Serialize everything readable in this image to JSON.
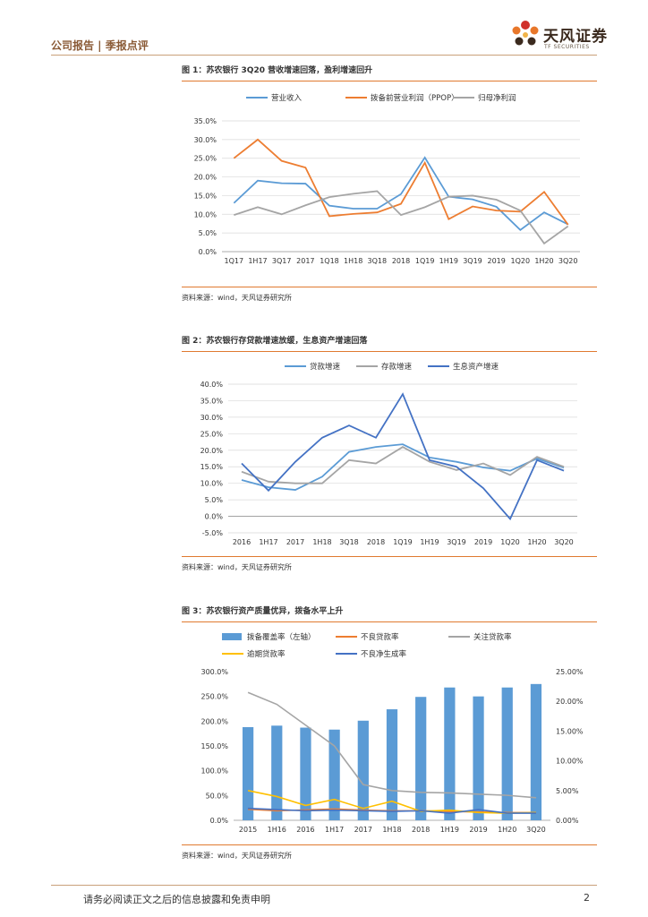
{
  "header": {
    "left": "公司报告 | 季报点评"
  },
  "logo": {
    "name": "天风证券",
    "sub": "TF SECURITIES"
  },
  "footer": {
    "disclaimer": "请务必阅读正文之后的信息披露和免责申明",
    "page": "2"
  },
  "colors": {
    "accent": "#e07a30",
    "blue": "#5b9bd5",
    "orange": "#ed7d31",
    "gray": "#a5a5a5",
    "yellow": "#ffc000",
    "navy": "#4472c4"
  },
  "figure1": {
    "title": "图 1：苏农银行 3Q20 营收增速回落，盈利增速回升",
    "source": "资料来源：wind，天风证券研究所",
    "chart_data": {
      "type": "line",
      "categories": [
        "1Q17",
        "1H17",
        "3Q17",
        "2017",
        "1Q18",
        "1H18",
        "3Q18",
        "2018",
        "1Q19",
        "1H19",
        "3Q19",
        "2019",
        "1Q20",
        "1H20",
        "3Q20"
      ],
      "series": [
        {
          "name": "营业收入",
          "color": "#5b9bd5",
          "values": [
            13.0,
            19.0,
            18.3,
            18.2,
            12.3,
            11.5,
            11.5,
            15.4,
            25.2,
            14.7,
            14.0,
            12.0,
            5.8,
            10.5,
            7.3
          ]
        },
        {
          "name": "拨备前营业利润（PPOP）",
          "color": "#ed7d31",
          "values": [
            25.0,
            30.0,
            24.3,
            22.5,
            9.5,
            10.1,
            10.5,
            12.8,
            23.8,
            8.7,
            12.1,
            11.0,
            10.7,
            16.0,
            7.2
          ]
        },
        {
          "name": "归母净利润",
          "color": "#a5a5a5",
          "values": [
            9.8,
            11.9,
            10.0,
            12.4,
            14.6,
            15.5,
            16.2,
            9.8,
            11.9,
            14.7,
            15.0,
            13.9,
            11.0,
            2.2,
            6.8
          ]
        }
      ],
      "yticks": [
        "0.0%",
        "5.0%",
        "10.0%",
        "15.0%",
        "20.0%",
        "25.0%",
        "30.0%",
        "35.0%"
      ],
      "ylim": [
        0,
        35
      ],
      "legend": "top"
    }
  },
  "figure2": {
    "title": "图 2：苏农银行存贷款增速放缓，生息资产增速回落",
    "source": "资料来源：wind，天风证券研究所",
    "chart_data": {
      "type": "line",
      "categories": [
        "2016",
        "1H17",
        "2017",
        "1H18",
        "3Q18",
        "2018",
        "1Q19",
        "1H19",
        "3Q19",
        "2019",
        "1Q20",
        "1H20",
        "3Q20"
      ],
      "series": [
        {
          "name": "贷款增速",
          "color": "#5b9bd5",
          "values": [
            11.0,
            8.8,
            8.0,
            12.0,
            19.5,
            21.0,
            21.8,
            17.8,
            16.5,
            14.8,
            13.8,
            17.5,
            14.7
          ]
        },
        {
          "name": "存款增速",
          "color": "#a5a5a5",
          "values": [
            13.5,
            10.5,
            10.0,
            10.0,
            17.0,
            16.0,
            21.0,
            16.5,
            14.0,
            16.0,
            12.5,
            18.0,
            15.0
          ]
        },
        {
          "name": "生息资产增速",
          "color": "#4472c4",
          "values": [
            16.0,
            7.8,
            16.5,
            23.8,
            27.5,
            23.8,
            37.0,
            17.0,
            15.0,
            8.5,
            -0.8,
            17.0,
            13.8
          ]
        }
      ],
      "yticks": [
        "-5.0%",
        "0.0%",
        "5.0%",
        "10.0%",
        "15.0%",
        "20.0%",
        "25.0%",
        "30.0%",
        "35.0%",
        "40.0%"
      ],
      "ylim": [
        -5,
        40
      ],
      "legend": "top"
    }
  },
  "figure3": {
    "title": "图 3：苏农银行资产质量优异，拨备水平上升",
    "source": "资料来源：wind，天风证券研究所",
    "chart_data": {
      "type": "bar",
      "categories": [
        "2015",
        "1H16",
        "2016",
        "1H17",
        "2017",
        "1H18",
        "2018",
        "1H19",
        "2019",
        "1H20",
        "3Q20"
      ],
      "bar_series": {
        "name": "拨备覆盖率（左轴）",
        "color": "#5b9bd5",
        "values": [
          188,
          191,
          187,
          183,
          201,
          224,
          249,
          268,
          250,
          268,
          275
        ]
      },
      "line_series": [
        {
          "name": "不良贷款率",
          "color": "#ed7d31",
          "values": [
            1.85,
            1.6,
            1.75,
            1.9,
            1.7,
            1.6,
            1.6,
            1.5,
            1.4,
            1.3,
            1.3
          ]
        },
        {
          "name": "关注贷款率",
          "color": "#a5a5a5",
          "values": [
            21.5,
            19.5,
            16.0,
            12.5,
            6.0,
            5.0,
            4.7,
            4.6,
            4.4,
            4.2,
            3.8
          ]
        },
        {
          "name": "逾期贷款率",
          "color": "#ffc000",
          "values": [
            5.0,
            4.0,
            2.5,
            3.5,
            2.0,
            3.2,
            1.5,
            1.7,
            1.3,
            1.2,
            1.3
          ]
        },
        {
          "name": "不良净生成率",
          "color": "#4472c4",
          "values": [
            2.0,
            1.8,
            1.6,
            1.7,
            1.6,
            1.5,
            1.6,
            1.2,
            1.8,
            1.2,
            1.2
          ]
        }
      ],
      "left_yticks": [
        "0.0%",
        "50.0%",
        "100.0%",
        "150.0%",
        "200.0%",
        "250.0%",
        "300.0%"
      ],
      "right_yticks": [
        "0.00%",
        "5.00%",
        "10.00%",
        "15.00%",
        "20.00%",
        "25.00%"
      ],
      "ylim_left": [
        0,
        300
      ],
      "ylim_right": [
        0,
        25
      ],
      "legend": "top"
    }
  }
}
